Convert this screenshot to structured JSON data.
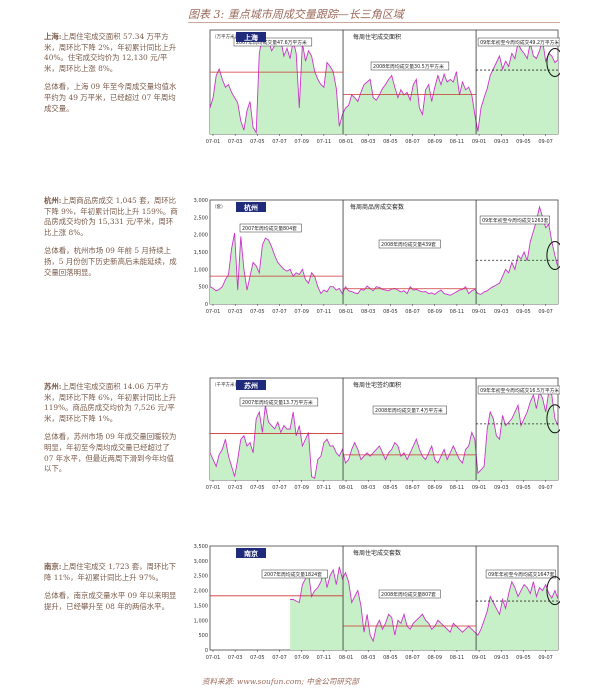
{
  "header": {
    "title": "图表 3: 重点城市周成交量跟踪—长三角区域"
  },
  "footer": {
    "source": "资料来源: www.soufun.com; 中金公司研究部"
  },
  "texts": [
    {
      "city": "上海:",
      "p1": "上周住宅成交面积 57.34 万平方米，周环比下降 2%，年初累计同比上升 40%。住宅成交均价为 12,130 元/平米，周环比上涨 8%。",
      "p2": "总体看，上海 09 年至今周成交量均值水平约为 49 万平米，已经超过 07 年周均成交量。"
    },
    {
      "city": "杭州:",
      "p1": "上周商品房成交 1,045 套，周环比下降 9%，年初累计同比上升 159%。商品房成交均价为 15,331 元/平米，周环比上涨 8%。",
      "p2": "总体看，杭州市场 09 年前 5 月持续上扬，5 月份创下历史新高后未能延续，成交量回落明显。"
    },
    {
      "city": "苏州:",
      "p1": "上周住宅成交面积 14.06 万平方米，周环比下降 6%，年初累计同比上升 119%。商品房成交均价为 7,526 元/平米，周环比下降 1%。",
      "p2": "总体看，苏州市场 09 年成交量回暖较为明显，年初至今周均成交量已经超过了 07 年水平，但最近两周下滑到今年均值以下。"
    },
    {
      "city": "南京:",
      "p1": "上周住宅成交 1,723 套，周环比下降 11%，年初累计同比上升 97%。",
      "p2": "总体看，南京成交量水平 09 年以来明显提升，已经攀升至 08 年的两倍水平。"
    }
  ],
  "chart_data": [
    {
      "type": "area",
      "city_label": "上海",
      "unit": "（万平方米）",
      "chart_title": "每周住宅成交面积",
      "x_ticks": [
        "07-01",
        "07-03",
        "07-05",
        "07-07",
        "07-09",
        "07-11",
        "08-01",
        "08-03",
        "08-05",
        "08-07",
        "08-09",
        "08-11",
        "09-01",
        "09-03",
        "09-05",
        "09-07"
      ],
      "ylim": [
        0,
        80
      ],
      "avg_labels": [
        "2007年周均成交量47.6万平方米",
        "2008年周均成交量30.5万平方米",
        "09年年初至今周均成交49.2万平方米"
      ],
      "avg_values": [
        47.6,
        30.5,
        49.2
      ],
      "values": [
        20,
        28,
        45,
        50,
        42,
        36,
        38,
        32,
        28,
        24,
        10,
        3,
        18,
        25,
        5,
        1,
        62,
        75,
        70,
        72,
        64,
        68,
        70,
        72,
        60,
        66,
        58,
        72,
        62,
        20,
        70,
        56,
        64,
        60,
        48,
        42,
        38,
        36,
        55,
        52,
        48,
        35,
        6,
        15,
        20,
        22,
        30,
        28,
        25,
        32,
        38,
        40,
        42,
        28,
        26,
        30,
        35,
        38,
        42,
        45,
        36,
        28,
        34,
        30,
        32,
        26,
        38,
        42,
        20,
        15,
        34,
        38,
        25,
        36,
        45,
        38,
        46,
        40,
        42,
        40,
        48,
        30,
        40,
        34,
        36,
        30,
        15,
        2,
        20,
        28,
        35,
        45,
        50,
        55,
        60,
        50,
        56,
        52,
        62,
        58,
        70,
        65,
        62,
        58,
        70,
        60,
        58,
        64,
        72,
        56,
        62,
        60,
        55,
        57
      ]
    },
    {
      "type": "area",
      "city_label": "杭州",
      "unit": "（套）",
      "chart_title": "每周商品房成交套数",
      "x_ticks": [
        "07-01",
        "07-03",
        "07-05",
        "07-07",
        "07-09",
        "07-11",
        "08-01",
        "08-03",
        "08-05",
        "08-07",
        "08-09",
        "08-11",
        "09-01",
        "09-03",
        "09-05",
        "09-07"
      ],
      "ylim": [
        0,
        3000
      ],
      "y_ticks": [
        "0",
        "500",
        "1,000",
        "1,500",
        "2,000",
        "2,500",
        "3,000"
      ],
      "avg_labels": [
        "2007年周均成交量804套",
        "2008年周均成交量439套",
        "09年年初至今周均成交1263套"
      ],
      "avg_values": [
        804,
        439,
        1263
      ],
      "values": [
        500,
        450,
        380,
        420,
        500,
        700,
        850,
        1600,
        2050,
        400,
        1950,
        1000,
        400,
        800,
        1200,
        1100,
        900,
        1700,
        1900,
        1850,
        1650,
        1400,
        1200,
        1100,
        1000,
        950,
        1000,
        800,
        900,
        850,
        1000,
        700,
        600,
        900,
        800,
        500,
        300,
        400,
        350,
        500,
        500,
        400,
        450,
        300,
        500,
        380,
        360,
        320,
        300,
        420,
        400,
        520,
        450,
        380,
        500,
        480,
        420,
        400,
        380,
        430,
        450,
        400,
        350,
        380,
        300,
        500,
        400,
        420,
        380,
        350,
        360,
        300,
        320,
        280,
        350,
        400,
        300,
        280,
        250,
        300,
        350,
        400,
        420,
        500,
        300,
        380,
        420,
        300,
        280,
        350,
        380,
        450,
        500,
        550,
        600,
        800,
        1000,
        900,
        1200,
        1000,
        1400,
        1300,
        1500,
        1250,
        1800,
        2100,
        2400,
        2800,
        2500,
        2200,
        2300,
        1800,
        1400,
        1050
      ]
    },
    {
      "type": "area",
      "city_label": "苏州",
      "unit": "（千平方米）",
      "chart_title": "每周住宅签约面积",
      "x_ticks": [
        "07-01",
        "07-03",
        "07-05",
        "07-07",
        "07-09",
        "07-11",
        "08-01",
        "08-03",
        "08-05",
        "08-07",
        "08-09",
        "08-11",
        "09-01",
        "09-03",
        "09-05",
        "09-07"
      ],
      "ylim": [
        0,
        300
      ],
      "avg_labels": [
        "2007年周均成交量13.7万平方米",
        "2008年周均成交量7.4万平方米",
        "09年年初至今周均成交16.5万平方米"
      ],
      "avg_values": [
        137,
        74,
        165
      ],
      "values": [
        80,
        60,
        40,
        75,
        90,
        120,
        70,
        40,
        10,
        60,
        120,
        130,
        100,
        110,
        80,
        180,
        200,
        140,
        220,
        170,
        160,
        150,
        170,
        140,
        160,
        150,
        150,
        200,
        130,
        160,
        100,
        120,
        140,
        10,
        5,
        60,
        70,
        110,
        120,
        100,
        100,
        80,
        70,
        90,
        50,
        60,
        90,
        110,
        90,
        60,
        70,
        80,
        70,
        80,
        90,
        100,
        80,
        60,
        80,
        90,
        110,
        100,
        70,
        80,
        60,
        80,
        100,
        120,
        90,
        70,
        60,
        80,
        100,
        60,
        50,
        70,
        90,
        60,
        80,
        100,
        80,
        60,
        50,
        90,
        100,
        140,
        120,
        20,
        30,
        40,
        150,
        200,
        180,
        130,
        120,
        190,
        160,
        170,
        180,
        200,
        220,
        160,
        180,
        200,
        230,
        250,
        210,
        260,
        240,
        200,
        260,
        250,
        180,
        160
      ]
    },
    {
      "type": "area",
      "city_label": "南京",
      "unit": "",
      "chart_title": "每周住宅成交套数",
      "x_ticks": [
        "07-01",
        "07-03",
        "07-05",
        "07-07",
        "07-09",
        "07-11",
        "08-01",
        "08-03",
        "08-05",
        "08-07",
        "08-09",
        "08-11",
        "09-01",
        "09-03",
        "09-05",
        "09-07"
      ],
      "ylim": [
        0,
        3500
      ],
      "y_ticks": [
        "0",
        "500",
        "1,000",
        "1,500",
        "2,000",
        "2,500",
        "3,000",
        "3,500"
      ],
      "avg_labels": [
        "2007年周均成交量1824套",
        "2008年周均成交量807套",
        "09年年初至今周均成交1647套"
      ],
      "avg_values": [
        1824,
        807,
        1647
      ],
      "start_index": 26,
      "values": [
        null,
        null,
        null,
        null,
        null,
        null,
        null,
        null,
        null,
        null,
        null,
        null,
        null,
        null,
        null,
        null,
        null,
        null,
        null,
        null,
        null,
        null,
        null,
        null,
        null,
        null,
        1700,
        1700,
        1650,
        1600,
        2200,
        2400,
        2600,
        1800,
        2000,
        2100,
        2300,
        2700,
        2100,
        2500,
        2700,
        2200,
        2800,
        2400,
        2600,
        2300,
        1600,
        1800,
        2000,
        1500,
        600,
        1200,
        500,
        300,
        800,
        1000,
        700,
        900,
        1200,
        1100,
        500,
        1000,
        900,
        1200,
        800,
        700,
        900,
        1000,
        1100,
        1200,
        1000,
        900,
        700,
        800,
        1000,
        900,
        800,
        700,
        600,
        900,
        800,
        700,
        600,
        700,
        800,
        700,
        600,
        500,
        700,
        1000,
        1300,
        1800,
        1600,
        1400,
        1200,
        1700,
        1400,
        1900,
        2300,
        2100,
        1800,
        2000,
        2200,
        2100,
        1900,
        2300,
        1800,
        2100,
        2000,
        2200,
        1900,
        1750,
        2000,
        1720
      ]
    }
  ]
}
